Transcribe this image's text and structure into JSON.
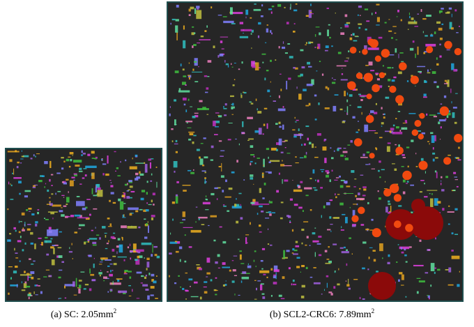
{
  "panels": [
    {
      "label": "(a)",
      "name": "SC:",
      "value": "2.05",
      "unit": "mm",
      "exponent": "2"
    },
    {
      "label": "(b)",
      "name": "SCL2-CRC6:",
      "value": "7.89",
      "unit": "mm",
      "exponent": "2"
    }
  ]
}
